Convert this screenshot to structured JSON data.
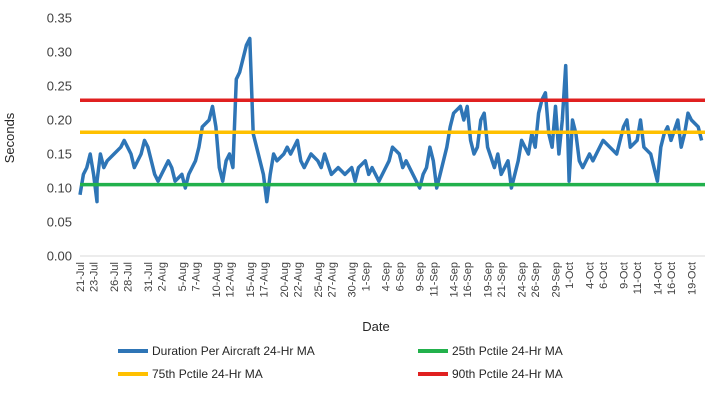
{
  "chart_data": {
    "type": "line",
    "title": "",
    "xlabel": "Date",
    "ylabel": "Seconds",
    "ylim": [
      0,
      0.35
    ],
    "y_ticks": [
      "0.00",
      "0.05",
      "0.10",
      "0.15",
      "0.20",
      "0.25",
      "0.30",
      "0.35"
    ],
    "grid": false,
    "legend_position": "bottom",
    "x_tick_labels": [
      "21-Jul",
      "23-Jul",
      "26-Jul",
      "28-Jul",
      "31-Jul",
      "2-Aug",
      "5-Aug",
      "7-Aug",
      "10-Aug",
      "12-Aug",
      "15-Aug",
      "17-Aug",
      "20-Aug",
      "22-Aug",
      "25-Aug",
      "27-Aug",
      "30-Aug",
      "1-Sep",
      "4-Sep",
      "6-Sep",
      "9-Sep",
      "11-Sep",
      "14-Sep",
      "16-Sep",
      "19-Sep",
      "21-Sep",
      "24-Sep",
      "26-Sep",
      "29-Sep",
      "1-Oct",
      "4-Oct",
      "6-Oct",
      "9-Oct",
      "11-Oct",
      "14-Oct",
      "16-Oct",
      "19-Oct"
    ],
    "x_range": [
      "21-Jul",
      "21-Oct"
    ],
    "series": [
      {
        "name": "Duration Per Aircraft 24-Hr MA",
        "color": "#2E75B6",
        "kind": "line",
        "points": [
          [
            "21-Jul",
            0.09
          ],
          [
            "21-Jul",
            0.12
          ],
          [
            "22-Jul",
            0.13
          ],
          [
            "22-Jul",
            0.15
          ],
          [
            "23-Jul",
            0.12
          ],
          [
            "23-Jul",
            0.08
          ],
          [
            "23-Jul",
            0.11
          ],
          [
            "24-Jul",
            0.15
          ],
          [
            "24-Jul",
            0.13
          ],
          [
            "25-Jul",
            0.14
          ],
          [
            "26-Jul",
            0.15
          ],
          [
            "27-Jul",
            0.16
          ],
          [
            "27-Jul",
            0.17
          ],
          [
            "28-Jul",
            0.16
          ],
          [
            "28-Jul",
            0.15
          ],
          [
            "29-Jul",
            0.13
          ],
          [
            "30-Jul",
            0.15
          ],
          [
            "30-Jul",
            0.17
          ],
          [
            "31-Jul",
            0.16
          ],
          [
            "31-Jul",
            0.14
          ],
          [
            "1-Aug",
            0.12
          ],
          [
            "1-Aug",
            0.11
          ],
          [
            "2-Aug",
            0.12
          ],
          [
            "3-Aug",
            0.14
          ],
          [
            "3-Aug",
            0.13
          ],
          [
            "4-Aug",
            0.11
          ],
          [
            "5-Aug",
            0.12
          ],
          [
            "5-Aug",
            0.1
          ],
          [
            "6-Aug",
            0.12
          ],
          [
            "7-Aug",
            0.14
          ],
          [
            "7-Aug",
            0.16
          ],
          [
            "8-Aug",
            0.19
          ],
          [
            "9-Aug",
            0.2
          ],
          [
            "9-Aug",
            0.22
          ],
          [
            "10-Aug",
            0.19
          ],
          [
            "10-Aug",
            0.13
          ],
          [
            "11-Aug",
            0.11
          ],
          [
            "11-Aug",
            0.14
          ],
          [
            "12-Aug",
            0.15
          ],
          [
            "12-Aug",
            0.13
          ],
          [
            "13-Aug",
            0.26
          ],
          [
            "13-Aug",
            0.27
          ],
          [
            "14-Aug",
            0.29
          ],
          [
            "14-Aug",
            0.31
          ],
          [
            "15-Aug",
            0.32
          ],
          [
            "15-Aug",
            0.18
          ],
          [
            "16-Aug",
            0.16
          ],
          [
            "16-Aug",
            0.14
          ],
          [
            "17-Aug",
            0.12
          ],
          [
            "17-Aug",
            0.08
          ],
          [
            "18-Aug",
            0.12
          ],
          [
            "18-Aug",
            0.15
          ],
          [
            "19-Aug",
            0.14
          ],
          [
            "20-Aug",
            0.15
          ],
          [
            "20-Aug",
            0.16
          ],
          [
            "21-Aug",
            0.15
          ],
          [
            "22-Aug",
            0.17
          ],
          [
            "22-Aug",
            0.14
          ],
          [
            "23-Aug",
            0.13
          ],
          [
            "24-Aug",
            0.15
          ],
          [
            "25-Aug",
            0.14
          ],
          [
            "25-Aug",
            0.13
          ],
          [
            "26-Aug",
            0.15
          ],
          [
            "27-Aug",
            0.12
          ],
          [
            "28-Aug",
            0.13
          ],
          [
            "29-Aug",
            0.12
          ],
          [
            "30-Aug",
            0.13
          ],
          [
            "30-Aug",
            0.11
          ],
          [
            "31-Aug",
            0.13
          ],
          [
            "1-Sep",
            0.14
          ],
          [
            "1-Sep",
            0.12
          ],
          [
            "2-Sep",
            0.13
          ],
          [
            "3-Sep",
            0.11
          ],
          [
            "4-Sep",
            0.13
          ],
          [
            "4-Sep",
            0.14
          ],
          [
            "5-Sep",
            0.16
          ],
          [
            "6-Sep",
            0.15
          ],
          [
            "6-Sep",
            0.13
          ],
          [
            "7-Sep",
            0.14
          ],
          [
            "8-Sep",
            0.12
          ],
          [
            "9-Sep",
            0.1
          ],
          [
            "9-Sep",
            0.12
          ],
          [
            "10-Sep",
            0.13
          ],
          [
            "10-Sep",
            0.16
          ],
          [
            "11-Sep",
            0.14
          ],
          [
            "11-Sep",
            0.1
          ],
          [
            "12-Sep",
            0.12
          ],
          [
            "13-Sep",
            0.16
          ],
          [
            "13-Sep",
            0.19
          ],
          [
            "14-Sep",
            0.21
          ],
          [
            "15-Sep",
            0.22
          ],
          [
            "15-Sep",
            0.2
          ],
          [
            "16-Sep",
            0.22
          ],
          [
            "16-Sep",
            0.17
          ],
          [
            "17-Sep",
            0.15
          ],
          [
            "17-Sep",
            0.16
          ],
          [
            "18-Sep",
            0.2
          ],
          [
            "18-Sep",
            0.21
          ],
          [
            "19-Sep",
            0.16
          ],
          [
            "20-Sep",
            0.13
          ],
          [
            "20-Sep",
            0.15
          ],
          [
            "21-Sep",
            0.12
          ],
          [
            "22-Sep",
            0.14
          ],
          [
            "22-Sep",
            0.1
          ],
          [
            "23-Sep",
            0.12
          ],
          [
            "23-Sep",
            0.14
          ],
          [
            "24-Sep",
            0.17
          ],
          [
            "25-Sep",
            0.15
          ],
          [
            "25-Sep",
            0.18
          ],
          [
            "26-Sep",
            0.16
          ],
          [
            "26-Sep",
            0.21
          ],
          [
            "27-Sep",
            0.23
          ],
          [
            "27-Sep",
            0.24
          ],
          [
            "28-Sep",
            0.18
          ],
          [
            "28-Sep",
            0.16
          ],
          [
            "29-Sep",
            0.22
          ],
          [
            "29-Sep",
            0.15
          ],
          [
            "30-Sep",
            0.2
          ],
          [
            "30-Sep",
            0.28
          ],
          [
            "1-Oct",
            0.11
          ],
          [
            "1-Oct",
            0.2
          ],
          [
            "2-Oct",
            0.18
          ],
          [
            "2-Oct",
            0.14
          ],
          [
            "3-Oct",
            0.13
          ],
          [
            "4-Oct",
            0.15
          ],
          [
            "4-Oct",
            0.14
          ],
          [
            "5-Oct",
            0.15
          ],
          [
            "6-Oct",
            0.17
          ],
          [
            "7-Oct",
            0.16
          ],
          [
            "8-Oct",
            0.15
          ],
          [
            "9-Oct",
            0.19
          ],
          [
            "9-Oct",
            0.2
          ],
          [
            "10-Oct",
            0.16
          ],
          [
            "11-Oct",
            0.17
          ],
          [
            "11-Oct",
            0.2
          ],
          [
            "12-Oct",
            0.16
          ],
          [
            "13-Oct",
            0.15
          ],
          [
            "13-Oct",
            0.13
          ],
          [
            "14-Oct",
            0.11
          ],
          [
            "14-Oct",
            0.16
          ],
          [
            "15-Oct",
            0.18
          ],
          [
            "15-Oct",
            0.19
          ],
          [
            "16-Oct",
            0.17
          ],
          [
            "17-Oct",
            0.2
          ],
          [
            "17-Oct",
            0.16
          ],
          [
            "18-Oct",
            0.18
          ],
          [
            "18-Oct",
            0.21
          ],
          [
            "19-Oct",
            0.2
          ],
          [
            "20-Oct",
            0.19
          ],
          [
            "20-Oct",
            0.17
          ]
        ]
      },
      {
        "name": "25th Pctile 24-Hr MA",
        "color": "#22B14C",
        "kind": "constant",
        "value": 0.105
      },
      {
        "name": "75th Pctile 24-Hr MA",
        "color": "#FFC000",
        "kind": "constant",
        "value": 0.182
      },
      {
        "name": "90th Pctile 24-Hr MA",
        "color": "#E02020",
        "kind": "constant",
        "value": 0.229
      }
    ],
    "legend_order": [
      0,
      1,
      2,
      3
    ]
  }
}
